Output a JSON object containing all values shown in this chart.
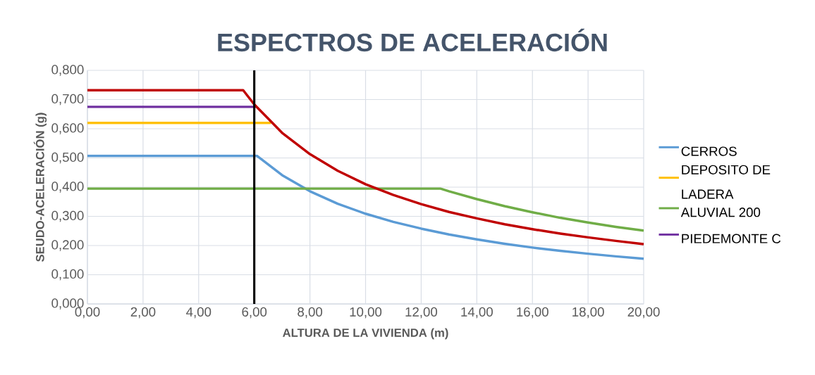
{
  "chart_data": {
    "type": "line",
    "title": "ESPECTROS DE ACELERACIÓN",
    "xlabel": "ALTURA DE LA VIVIENDA (m)",
    "ylabel": "SEUDO-ACELERACIÓN (g)",
    "xlim": [
      0,
      20
    ],
    "ylim": [
      0,
      0.8
    ],
    "xticks": [
      {
        "value": 0,
        "label": "0,00"
      },
      {
        "value": 2,
        "label": "2,00"
      },
      {
        "value": 4,
        "label": "4,00"
      },
      {
        "value": 6,
        "label": "6,00"
      },
      {
        "value": 8,
        "label": "8,00"
      },
      {
        "value": 10,
        "label": "10,00"
      },
      {
        "value": 12,
        "label": "12,00"
      },
      {
        "value": 14,
        "label": "14,00"
      },
      {
        "value": 16,
        "label": "16,00"
      },
      {
        "value": 18,
        "label": "18,00"
      },
      {
        "value": 20,
        "label": "20,00"
      }
    ],
    "yticks": [
      {
        "value": 0,
        "label": "0,000"
      },
      {
        "value": 0.1,
        "label": "0,100"
      },
      {
        "value": 0.2,
        "label": "0,200"
      },
      {
        "value": 0.3,
        "label": "0,300"
      },
      {
        "value": 0.4,
        "label": "0,400"
      },
      {
        "value": 0.5,
        "label": "0,500"
      },
      {
        "value": 0.6,
        "label": "0,600"
      },
      {
        "value": 0.7,
        "label": "0,700"
      },
      {
        "value": 0.8,
        "label": "0,800"
      }
    ],
    "grid": true,
    "legend": "right",
    "marker": "none",
    "line_style": "solid",
    "series": [
      {
        "name": "CERROS",
        "color": "#5b9bd5",
        "x": [
          0,
          6.1,
          7,
          8,
          9,
          10,
          11,
          12,
          13,
          14,
          15,
          16,
          17,
          18,
          19,
          20
        ],
        "values": [
          0.507,
          0.507,
          0.441,
          0.386,
          0.343,
          0.309,
          0.281,
          0.258,
          0.238,
          0.221,
          0.206,
          0.193,
          0.182,
          0.172,
          0.163,
          0.155
        ]
      },
      {
        "name": "DEPOSITO DE LADERA",
        "color": "#ffc000",
        "x": [
          0,
          6.6
        ],
        "values": [
          0.62,
          0.62
        ]
      },
      {
        "name": "ALUVIAL 200",
        "color": "#70ad47",
        "x": [
          0,
          12.7,
          13,
          14,
          15,
          16,
          17,
          18,
          19,
          20
        ],
        "values": [
          0.395,
          0.395,
          0.386,
          0.359,
          0.335,
          0.314,
          0.295,
          0.279,
          0.264,
          0.251
        ]
      },
      {
        "name": "PIEDEMONTE C",
        "color": "#7030a0",
        "x": [
          0,
          6.05
        ],
        "values": [
          0.675,
          0.675
        ]
      },
      {
        "color": "#c00000",
        "x": [
          0,
          5.6,
          6,
          7,
          8,
          9,
          10,
          11,
          12,
          13,
          14,
          15,
          16,
          17,
          18,
          19,
          20
        ],
        "values": [
          0.732,
          0.732,
          0.683,
          0.586,
          0.513,
          0.456,
          0.41,
          0.373,
          0.342,
          0.315,
          0.293,
          0.273,
          0.256,
          0.241,
          0.228,
          0.216,
          0.205
        ]
      }
    ],
    "ref_lines": [
      {
        "axis": "x",
        "value": 6,
        "color": "#000000"
      }
    ]
  }
}
